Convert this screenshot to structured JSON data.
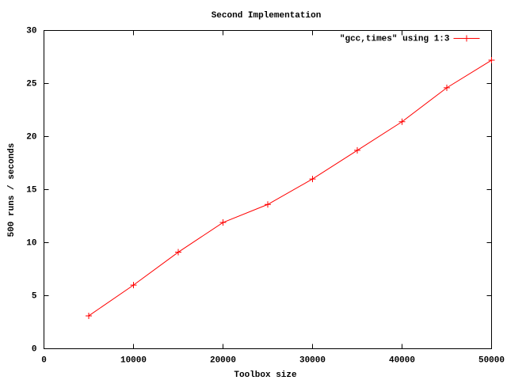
{
  "chart_data": {
    "type": "line",
    "title": "Second Implementation",
    "xlabel": "Toolbox size",
    "ylabel": "500 runs / seconds",
    "x": [
      5000,
      10000,
      15000,
      20000,
      25000,
      30000,
      35000,
      40000,
      45000,
      50000
    ],
    "series": [
      {
        "name": "\"gcc,times\" using 1:3",
        "color": "#ff0000",
        "values": [
          3.1,
          6.0,
          9.1,
          11.9,
          13.6,
          16.0,
          18.7,
          21.4,
          24.6,
          27.2
        ]
      }
    ],
    "xlim": [
      0,
      50000
    ],
    "xticks": [
      0,
      10000,
      20000,
      30000,
      40000,
      50000
    ],
    "ylim": [
      0,
      30
    ],
    "yticks": [
      0,
      5,
      10,
      15,
      20,
      25,
      30
    ],
    "grid": false,
    "legend": "top-right"
  }
}
